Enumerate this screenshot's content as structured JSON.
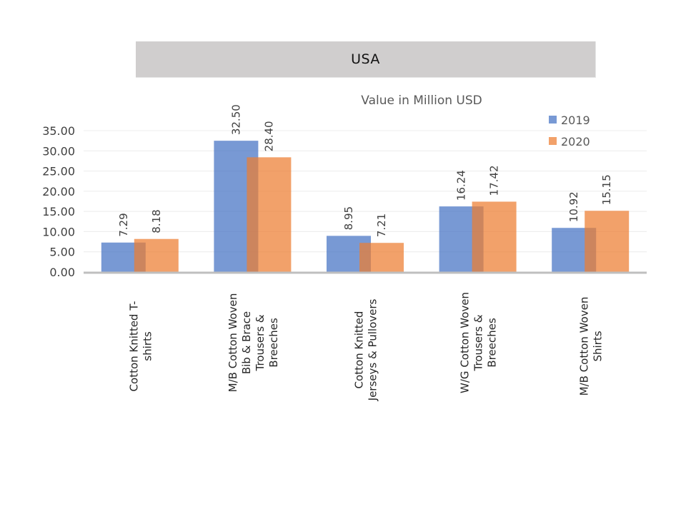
{
  "header": {
    "title": "USA"
  },
  "chart_data": {
    "type": "bar",
    "title": "USA",
    "subtitle": "Value in Million USD",
    "xlabel": "",
    "ylabel": "",
    "ylim": [
      0,
      35
    ],
    "yticks": [
      "0.00",
      "5.00",
      "10.00",
      "15.00",
      "20.00",
      "25.00",
      "30.00",
      "35.00"
    ],
    "grid": true,
    "legend_position": "top-right",
    "categories": [
      "Cotton Knitted  T-shirts",
      "M/B Cotton Woven Bib & Brace Trousers & Breeches",
      "Cotton Knitted Jerseys & Pullovers",
      "W/G Cotton Woven Trousers & Breeches",
      "M/B Cotton Woven Shirts"
    ],
    "category_lines": [
      [
        "Cotton Knitted  T-",
        "shirts"
      ],
      [
        "M/B Cotton Woven",
        "Bib & Brace",
        "Trousers &",
        "Breeches"
      ],
      [
        "Cotton Knitted",
        "Jerseys & Pullovers"
      ],
      [
        "W/G Cotton Woven",
        "Trousers &",
        "Breeches"
      ],
      [
        "M/B Cotton Woven",
        "Shirts"
      ]
    ],
    "series": [
      {
        "name": "2019",
        "color": "#4472c4",
        "values": [
          7.29,
          32.5,
          8.95,
          16.24,
          10.92
        ],
        "labels": [
          "7.29",
          "32.50",
          "8.95",
          "16.24",
          "10.92"
        ]
      },
      {
        "name": "2020",
        "color": "#ed7d31",
        "values": [
          8.18,
          28.4,
          7.21,
          17.42,
          15.15
        ],
        "labels": [
          "8.18",
          "28.40",
          "7.21",
          "17.42",
          "15.15"
        ]
      }
    ]
  }
}
